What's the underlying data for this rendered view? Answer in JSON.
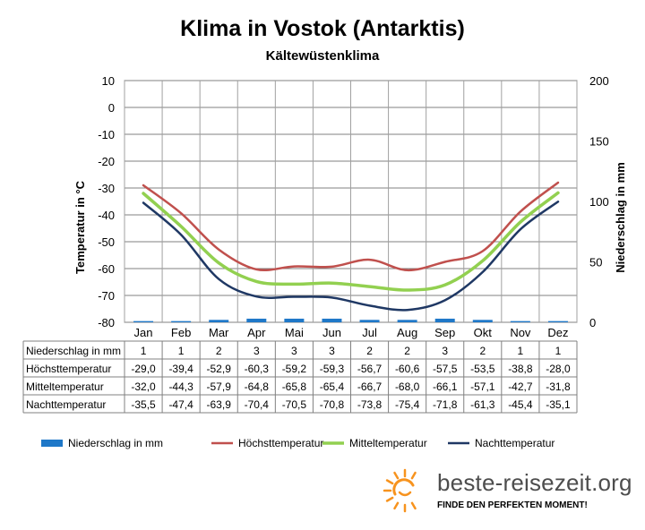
{
  "chart_data": {
    "type": "bar+line",
    "title": "Klima in Vostok (Antarktis)",
    "subtitle": "Kältewüstenklima",
    "ylabel_left": "Temperatur in °C",
    "ylabel_right": "Niederschlag in mm",
    "ylim_left": [
      -80,
      10
    ],
    "ylim_right": [
      0,
      200
    ],
    "yticks_left": [
      "10",
      "0",
      "-10",
      "-20",
      "-30",
      "-40",
      "-50",
      "-60",
      "-70",
      "-80"
    ],
    "yticks_right": [
      "200",
      "150",
      "100",
      "50",
      "0"
    ],
    "grid": true,
    "legend_position": "bottom",
    "categories": [
      "Jan",
      "Feb",
      "Mar",
      "Apr",
      "Mai",
      "Jun",
      "Jul",
      "Aug",
      "Sep",
      "Okt",
      "Nov",
      "Dez"
    ],
    "series": [
      {
        "name": "Niederschlag in mm",
        "kind": "bar",
        "axis": "right",
        "color": "#1f78c8",
        "values": [
          1,
          1,
          2,
          3,
          3,
          3,
          2,
          2,
          3,
          2,
          1,
          1
        ],
        "labels": [
          "1",
          "1",
          "2",
          "3",
          "3",
          "3",
          "2",
          "2",
          "3",
          "2",
          "1",
          "1"
        ]
      },
      {
        "name": "Höchsttemperatur",
        "kind": "line",
        "axis": "left",
        "color": "#c0504d",
        "values": [
          -29.0,
          -39.4,
          -52.9,
          -60.3,
          -59.2,
          -59.3,
          -56.7,
          -60.6,
          -57.5,
          -53.5,
          -38.8,
          -28.0
        ],
        "labels": [
          "-29,0",
          "-39,4",
          "-52,9",
          "-60,3",
          "-59,2",
          "-59,3",
          "-56,7",
          "-60,6",
          "-57,5",
          "-53,5",
          "-38,8",
          "-28,0"
        ]
      },
      {
        "name": "Mitteltemperatur",
        "kind": "line",
        "axis": "left",
        "color": "#92d050",
        "values": [
          -32.0,
          -44.3,
          -57.9,
          -64.8,
          -65.8,
          -65.4,
          -66.7,
          -68.0,
          -66.1,
          -57.1,
          -42.7,
          -31.8
        ],
        "labels": [
          "-32,0",
          "-44,3",
          "-57,9",
          "-64,8",
          "-65,8",
          "-65,4",
          "-66,7",
          "-68,0",
          "-66,1",
          "-57,1",
          "-42,7",
          "-31,8"
        ]
      },
      {
        "name": "Nachttemperatur",
        "kind": "line",
        "axis": "left",
        "color": "#1f3864",
        "values": [
          -35.5,
          -47.4,
          -63.9,
          -70.4,
          -70.5,
          -70.8,
          -73.8,
          -75.4,
          -71.8,
          -61.3,
          -45.4,
          -35.1
        ],
        "labels": [
          "-35,5",
          "-47,4",
          "-63,9",
          "-70,4",
          "-70,5",
          "-70,8",
          "-73,8",
          "-75,4",
          "-71,8",
          "-61,3",
          "-45,4",
          "-35,1"
        ]
      }
    ]
  },
  "branding": {
    "logo_text": "beste-reisezeit.org",
    "tagline": "FINDE DEN PERFEKTEN MOMENT!",
    "sun_color": "#f7931e"
  }
}
